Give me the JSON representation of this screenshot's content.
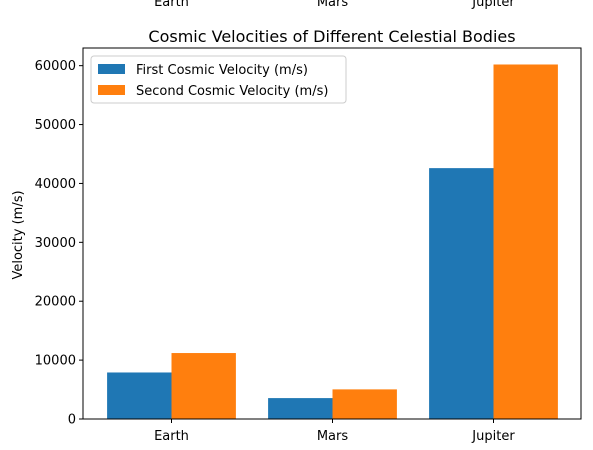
{
  "chart_data": {
    "type": "bar",
    "title": "Cosmic Velocities of Different Celestial Bodies",
    "xlabel": "",
    "ylabel": "Velocity (m/s)",
    "categories": [
      "Earth",
      "Mars",
      "Jupiter"
    ],
    "ylim": [
      0,
      63000
    ],
    "yticks": [
      0,
      10000,
      20000,
      30000,
      40000,
      50000,
      60000
    ],
    "legend_position": "top-left",
    "series": [
      {
        "name": "First Cosmic Velocity (m/s)",
        "color": "#1f77b4",
        "values": [
          7900,
          3550,
          42600
        ]
      },
      {
        "name": "Second Cosmic Velocity (m/s)",
        "color": "#ff7f0e",
        "values": [
          11200,
          5030,
          60200
        ]
      }
    ],
    "clipped_top_labels": [
      "Earth",
      "Mars",
      "Jupiter"
    ]
  }
}
